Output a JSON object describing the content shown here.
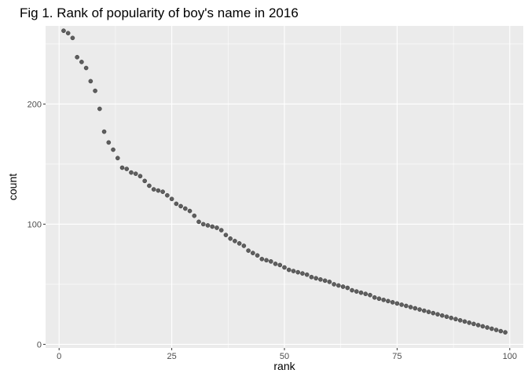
{
  "chart_data": {
    "type": "scatter",
    "title": "Fig 1. Rank of popularity of boy's name in 2016",
    "xlabel": "rank",
    "ylabel": "count",
    "xlim": [
      -3,
      103
    ],
    "ylim": [
      -3,
      265
    ],
    "x_ticks": [
      0,
      25,
      50,
      75,
      100
    ],
    "y_ticks": [
      0,
      100,
      200
    ],
    "x_tick_labels": [
      "0",
      "25",
      "50",
      "75",
      "100"
    ],
    "y_tick_labels": [
      "0",
      "100",
      "200"
    ],
    "grid": true,
    "legend": "none",
    "colors": {
      "panel_background": "#ebebeb",
      "grid_major": "#ffffff",
      "point": "#000000",
      "point_light": "#5a5a5a"
    },
    "points": [
      {
        "x": 1,
        "y": 261
      },
      {
        "x": 2,
        "y": 259
      },
      {
        "x": 3,
        "y": 255
      },
      {
        "x": 4,
        "y": 239
      },
      {
        "x": 5,
        "y": 235
      },
      {
        "x": 6,
        "y": 230
      },
      {
        "x": 7,
        "y": 219
      },
      {
        "x": 8,
        "y": 211
      },
      {
        "x": 9,
        "y": 196
      },
      {
        "x": 10,
        "y": 177
      },
      {
        "x": 11,
        "y": 168
      },
      {
        "x": 12,
        "y": 162
      },
      {
        "x": 13,
        "y": 155
      },
      {
        "x": 14,
        "y": 147
      },
      {
        "x": 15,
        "y": 146
      },
      {
        "x": 16,
        "y": 143
      },
      {
        "x": 17,
        "y": 142
      },
      {
        "x": 18,
        "y": 140
      },
      {
        "x": 19,
        "y": 136
      },
      {
        "x": 20,
        "y": 132
      },
      {
        "x": 21,
        "y": 129
      },
      {
        "x": 22,
        "y": 128
      },
      {
        "x": 23,
        "y": 127
      },
      {
        "x": 24,
        "y": 124
      },
      {
        "x": 25,
        "y": 121
      },
      {
        "x": 26,
        "y": 117
      },
      {
        "x": 27,
        "y": 115
      },
      {
        "x": 28,
        "y": 113
      },
      {
        "x": 29,
        "y": 111
      },
      {
        "x": 30,
        "y": 107
      },
      {
        "x": 31,
        "y": 102
      },
      {
        "x": 32,
        "y": 100
      },
      {
        "x": 33,
        "y": 99
      },
      {
        "x": 34,
        "y": 98
      },
      {
        "x": 35,
        "y": 97
      },
      {
        "x": 36,
        "y": 95
      },
      {
        "x": 37,
        "y": 91
      },
      {
        "x": 38,
        "y": 88
      },
      {
        "x": 39,
        "y": 86
      },
      {
        "x": 40,
        "y": 84
      },
      {
        "x": 41,
        "y": 82
      },
      {
        "x": 42,
        "y": 78
      },
      {
        "x": 43,
        "y": 76
      },
      {
        "x": 44,
        "y": 74
      },
      {
        "x": 45,
        "y": 71
      },
      {
        "x": 46,
        "y": 70
      },
      {
        "x": 47,
        "y": 69
      },
      {
        "x": 48,
        "y": 67
      },
      {
        "x": 49,
        "y": 66
      },
      {
        "x": 50,
        "y": 64
      },
      {
        "x": 51,
        "y": 62
      },
      {
        "x": 52,
        "y": 61
      },
      {
        "x": 53,
        "y": 60
      },
      {
        "x": 54,
        "y": 59
      },
      {
        "x": 55,
        "y": 58
      },
      {
        "x": 56,
        "y": 56
      },
      {
        "x": 57,
        "y": 55
      },
      {
        "x": 58,
        "y": 54
      },
      {
        "x": 59,
        "y": 53
      },
      {
        "x": 60,
        "y": 52
      },
      {
        "x": 61,
        "y": 50
      },
      {
        "x": 62,
        "y": 49
      },
      {
        "x": 63,
        "y": 48
      },
      {
        "x": 64,
        "y": 47
      },
      {
        "x": 65,
        "y": 45
      },
      {
        "x": 66,
        "y": 44
      },
      {
        "x": 67,
        "y": 43
      },
      {
        "x": 68,
        "y": 42
      },
      {
        "x": 69,
        "y": 41
      },
      {
        "x": 70,
        "y": 39
      },
      {
        "x": 71,
        "y": 38
      },
      {
        "x": 72,
        "y": 37
      },
      {
        "x": 73,
        "y": 36
      },
      {
        "x": 74,
        "y": 35
      },
      {
        "x": 75,
        "y": 34
      },
      {
        "x": 76,
        "y": 33
      },
      {
        "x": 77,
        "y": 32
      },
      {
        "x": 78,
        "y": 31
      },
      {
        "x": 79,
        "y": 30
      },
      {
        "x": 80,
        "y": 29
      },
      {
        "x": 81,
        "y": 28
      },
      {
        "x": 82,
        "y": 27
      },
      {
        "x": 83,
        "y": 26
      },
      {
        "x": 84,
        "y": 25
      },
      {
        "x": 85,
        "y": 24
      },
      {
        "x": 86,
        "y": 23
      },
      {
        "x": 87,
        "y": 22
      },
      {
        "x": 88,
        "y": 21
      },
      {
        "x": 89,
        "y": 20
      },
      {
        "x": 90,
        "y": 19
      },
      {
        "x": 91,
        "y": 18
      },
      {
        "x": 92,
        "y": 17
      },
      {
        "x": 93,
        "y": 16
      },
      {
        "x": 94,
        "y": 15
      },
      {
        "x": 95,
        "y": 14
      },
      {
        "x": 96,
        "y": 13
      },
      {
        "x": 97,
        "y": 12
      },
      {
        "x": 98,
        "y": 11
      },
      {
        "x": 99,
        "y": 10
      }
    ]
  }
}
